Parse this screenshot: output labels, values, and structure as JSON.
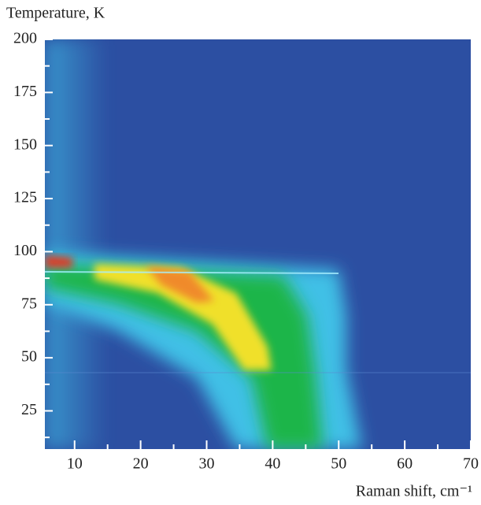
{
  "chart_data": {
    "type": "heatmap",
    "y_label": "Temperature, K",
    "x_label": "Raman shift, cm⁻¹",
    "xlim": [
      5.5,
      70
    ],
    "xticks": [
      10,
      20,
      30,
      40,
      50,
      60,
      70
    ],
    "xminorticks": [
      15,
      25,
      35,
      45,
      55,
      65
    ],
    "ylim": [
      7,
      200
    ],
    "yticks": [
      25,
      50,
      75,
      100,
      125,
      150,
      175,
      200
    ],
    "yminorticks": [
      12.5,
      37.5,
      62.5,
      87.5,
      112.5,
      137.5,
      162.5,
      187.5
    ],
    "background": "#2c4fa2"
  }
}
